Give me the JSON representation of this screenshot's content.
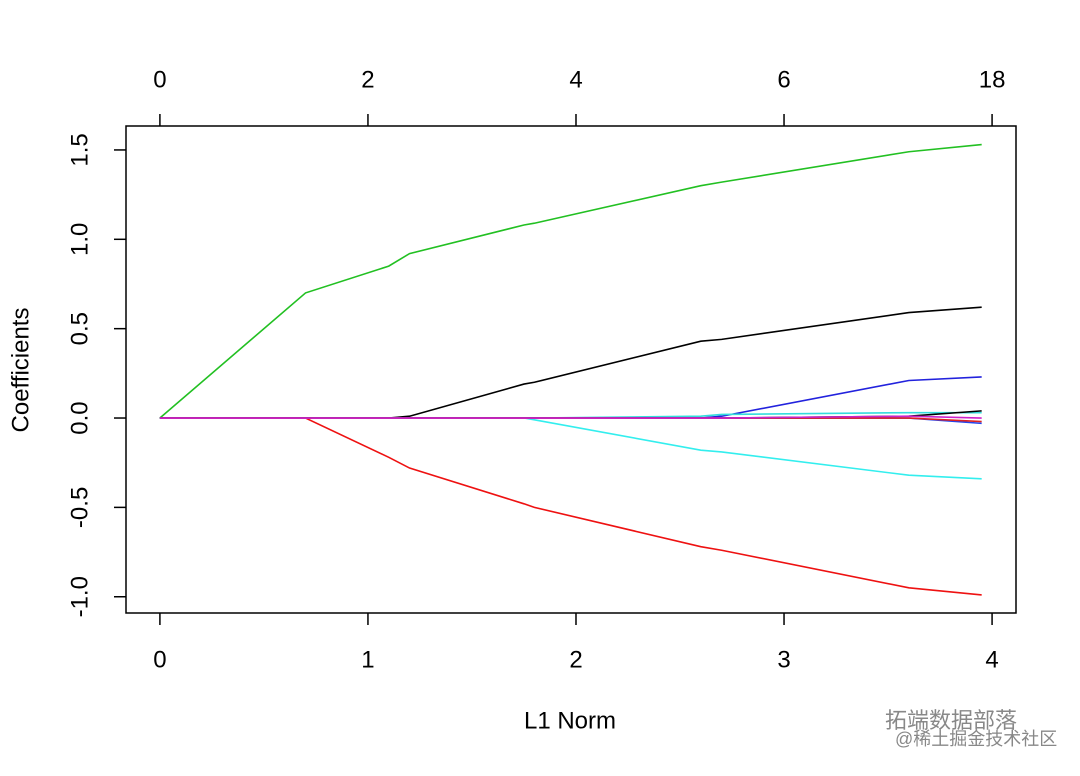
{
  "chart_data": {
    "type": "line",
    "xlabel": "L1 Norm",
    "ylabel": "Coefficients",
    "x": [
      0,
      0.7,
      1.1,
      1.2,
      1.75,
      1.8,
      2.6,
      2.7,
      3.6,
      3.95
    ],
    "series": [
      {
        "color": "#22c022",
        "values": [
          0,
          0.7,
          0.85,
          0.92,
          1.08,
          1.09,
          1.3,
          1.32,
          1.49,
          1.53
        ]
      },
      {
        "color": "#000000",
        "values": [
          0,
          0,
          0,
          0.01,
          0.19,
          0.2,
          0.43,
          0.44,
          0.59,
          0.62
        ]
      },
      {
        "color": "#2222dd",
        "values": [
          0,
          0,
          0,
          0,
          0,
          0,
          0,
          0.01,
          0.21,
          0.23
        ]
      },
      {
        "color": "#33eeee",
        "values": [
          0,
          0,
          0,
          0,
          0,
          -0.01,
          -0.18,
          -0.19,
          -0.32,
          -0.34
        ]
      },
      {
        "color": "#ee1111",
        "values": [
          0,
          0,
          -0.22,
          -0.28,
          -0.48,
          -0.5,
          -0.72,
          -0.74,
          -0.95,
          -0.99
        ]
      },
      {
        "color": "#33dddd",
        "values": [
          0,
          0,
          0,
          0,
          0,
          0,
          0.01,
          0.02,
          0.03,
          0.03
        ]
      },
      {
        "color": "#000000",
        "values": [
          0,
          0,
          0,
          0,
          0,
          0,
          0,
          0,
          0.01,
          0.04
        ]
      },
      {
        "color": "#2244ee",
        "values": [
          0,
          0,
          0,
          0,
          0,
          0,
          0,
          0,
          0,
          -0.03
        ]
      },
      {
        "color": "#dd2222",
        "values": [
          0,
          0,
          0,
          0,
          0,
          0,
          0,
          0,
          0,
          -0.02
        ]
      },
      {
        "color": "#cc22cc",
        "values": [
          0,
          0,
          0,
          0,
          0,
          0,
          0,
          0,
          0.01,
          0
        ]
      }
    ],
    "xlim": [
      -0.163,
      4.115
    ],
    "ylim": [
      -1.091,
      1.634
    ],
    "xticks": [
      0,
      1,
      2,
      3,
      4
    ],
    "x2ticks": [
      0,
      {
        "value": 1,
        "label": "2"
      },
      {
        "value": 2,
        "label": "4"
      },
      {
        "value": 3,
        "label": "6"
      },
      {
        "value": 4,
        "label": "18"
      }
    ],
    "yticks": [
      {
        "value": -1,
        "label": "-1.0"
      },
      -0.5,
      {
        "value": 0,
        "label": "0.0"
      },
      0.5,
      {
        "value": 1,
        "label": "1.0"
      },
      1.5
    ]
  },
  "watermark": {
    "brand": "拓端数据部落",
    "source": "@稀土掘金技术社区"
  }
}
